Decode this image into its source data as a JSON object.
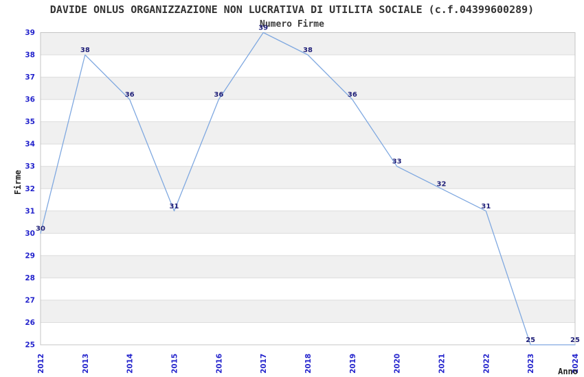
{
  "chart_data": {
    "type": "line",
    "title": "DAVIDE ONLUS ORGANIZZAZIONE NON LUCRATIVA DI UTILITA SOCIALE (c.f.04399600289)",
    "subtitle": "Numero Firme",
    "xlabel": "Anno",
    "ylabel": "Firme",
    "categories": [
      "2012",
      "2013",
      "2014",
      "2015",
      "2016",
      "2017",
      "2018",
      "2019",
      "2020",
      "2021",
      "2022",
      "2023",
      "2024"
    ],
    "values": [
      30,
      38,
      36,
      31,
      36,
      39,
      38,
      36,
      33,
      32,
      31,
      25,
      25
    ],
    "ylim": [
      25,
      39
    ],
    "y_tick_step": 1,
    "grid": "horizontal",
    "alternating_bands": true,
    "legend": "none",
    "data_labels_visible": true,
    "colors": {
      "line": "#7FA8E0",
      "tick_label": "#2222CC",
      "data_label": "#1F1F78",
      "band": "#F0F0F0",
      "grid": "#DCDCDC",
      "border": "#C4C4C4",
      "title_text": "#333333"
    }
  }
}
